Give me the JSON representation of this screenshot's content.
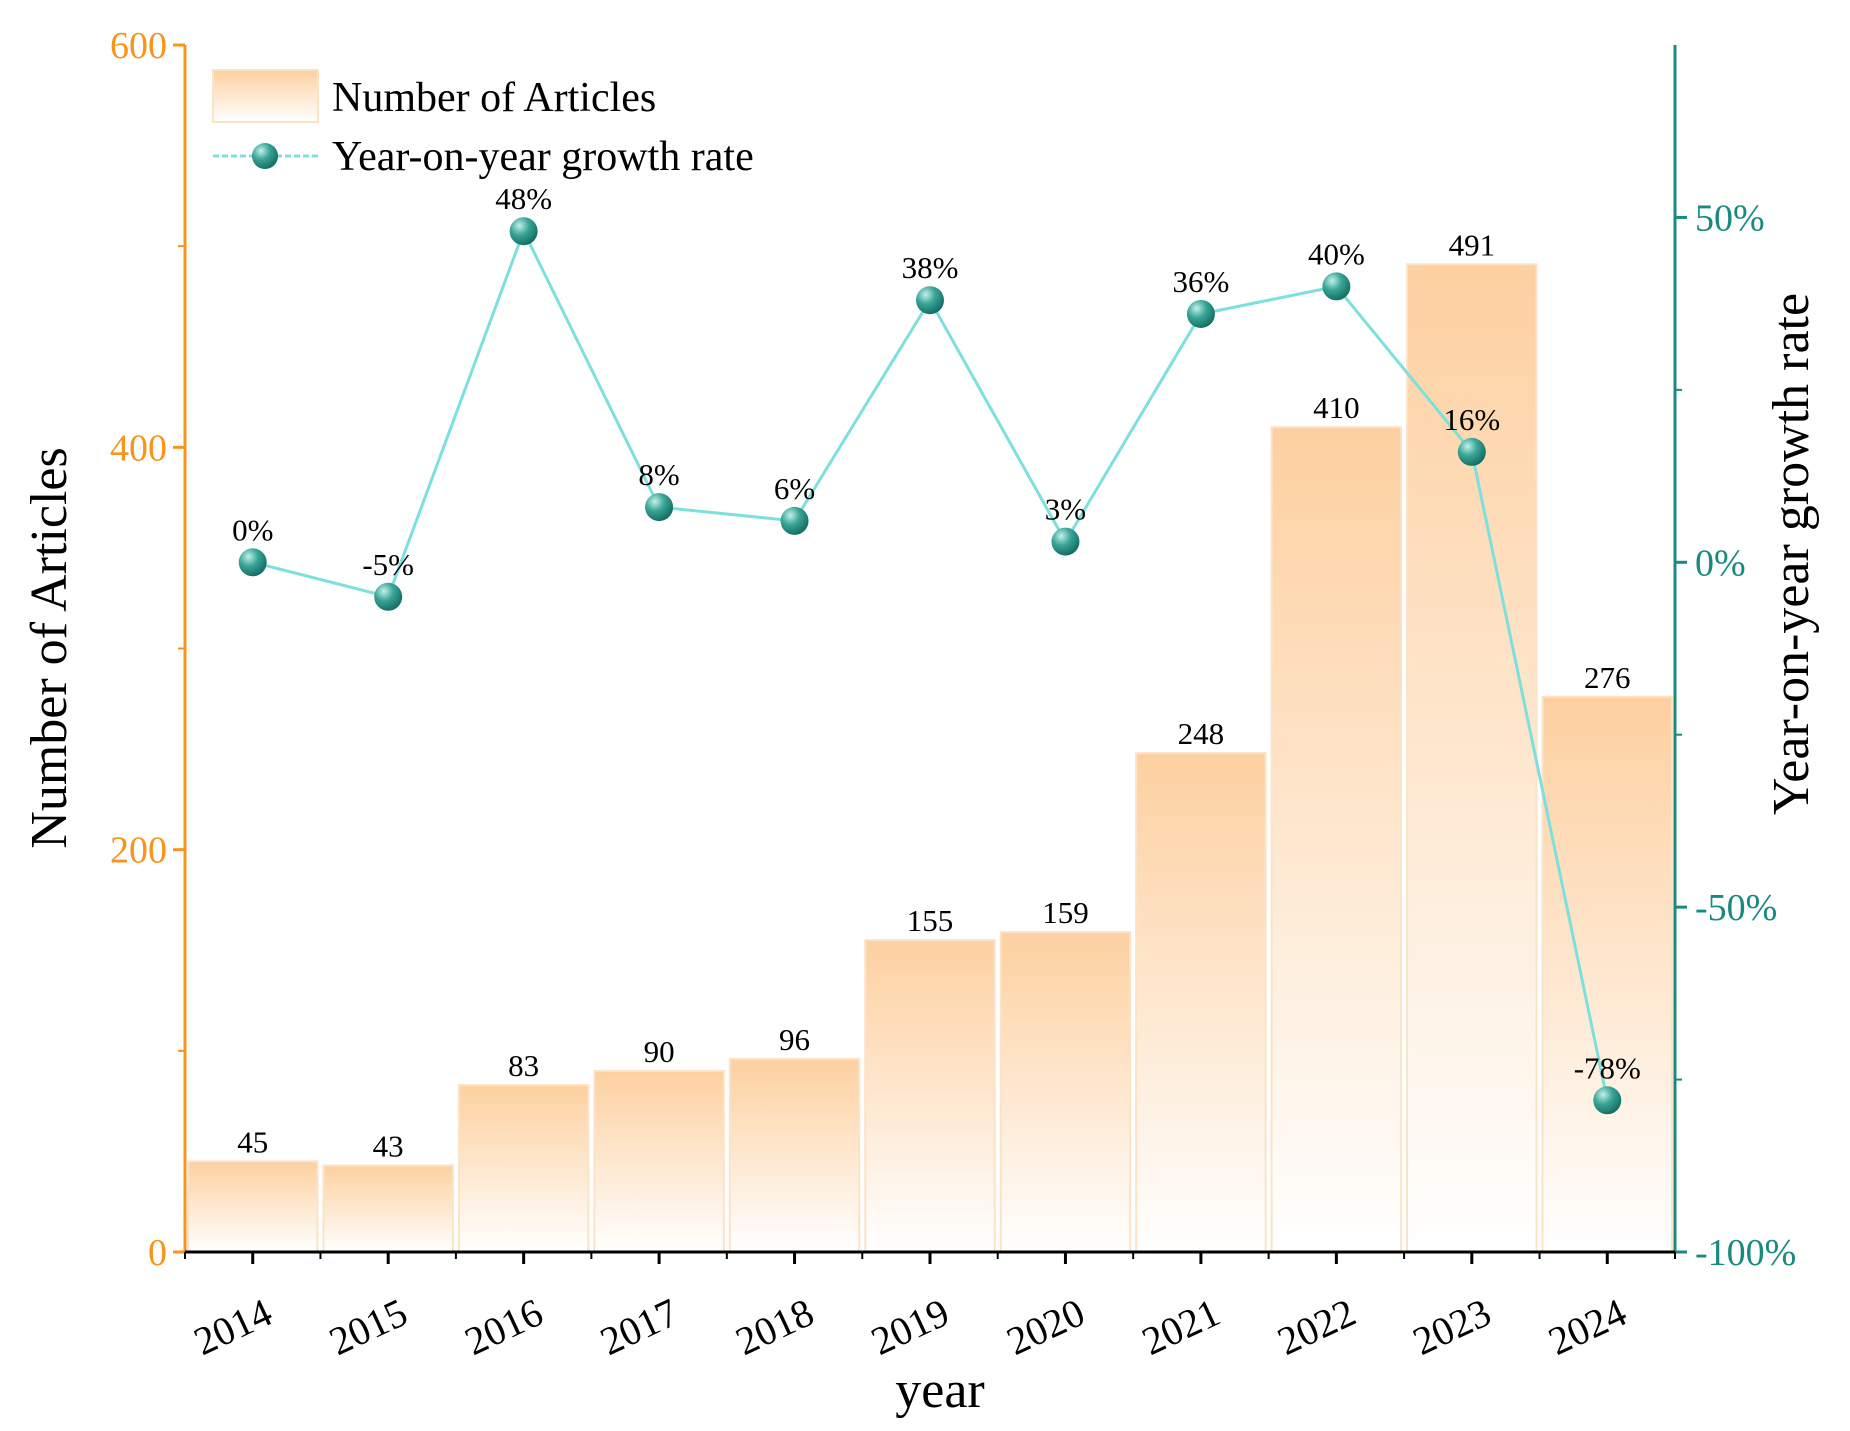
{
  "chart_data": {
    "type": "bar",
    "categories": [
      "2014",
      "2015",
      "2016",
      "2017",
      "2018",
      "2019",
      "2020",
      "2021",
      "2022",
      "2023",
      "2024"
    ],
    "series": [
      {
        "name": "Number of Articles",
        "type": "bar",
        "axis": "left",
        "values": [
          45,
          43,
          83,
          90,
          96,
          155,
          159,
          248,
          410,
          491,
          276
        ],
        "labels": [
          "45",
          "43",
          "83",
          "90",
          "96",
          "155",
          "159",
          "248",
          "410",
          "491",
          "276"
        ]
      },
      {
        "name": "Year-on-year growth rate",
        "type": "line",
        "axis": "right",
        "values": [
          0,
          -5,
          48,
          8,
          6,
          38,
          3,
          36,
          40,
          16,
          -78
        ],
        "labels": [
          "0%",
          "-5%",
          "48%",
          "8%",
          "6%",
          "38%",
          "3%",
          "36%",
          "40%",
          "16%",
          "-78%"
        ]
      }
    ],
    "xlabel": "year",
    "ylabel": "Number of Articles",
    "y2label": "Year-on-year growth rate",
    "ylim": [
      0,
      600
    ],
    "y2lim": [
      -100,
      75
    ],
    "yticks": [
      0,
      200,
      400,
      600
    ],
    "ytick_labels": [
      "0",
      "200",
      "400",
      "600"
    ],
    "y2ticks": [
      -100,
      -50,
      0,
      50
    ],
    "y2tick_labels": [
      "-100%",
      "-50%",
      "0%",
      "50%"
    ],
    "legend": {
      "position": "top-left",
      "entries": [
        "Number of Articles",
        "Year-on-year growth rate"
      ]
    },
    "colors": {
      "bar_top": "#fdd0a0",
      "bar_bottom": "#ffffff",
      "bar_edge": "#fbe3c8",
      "line": "#7de0dc",
      "marker": "#2a9085",
      "left_axis": "#f7941d",
      "right_axis": "#1a8a7e"
    }
  }
}
